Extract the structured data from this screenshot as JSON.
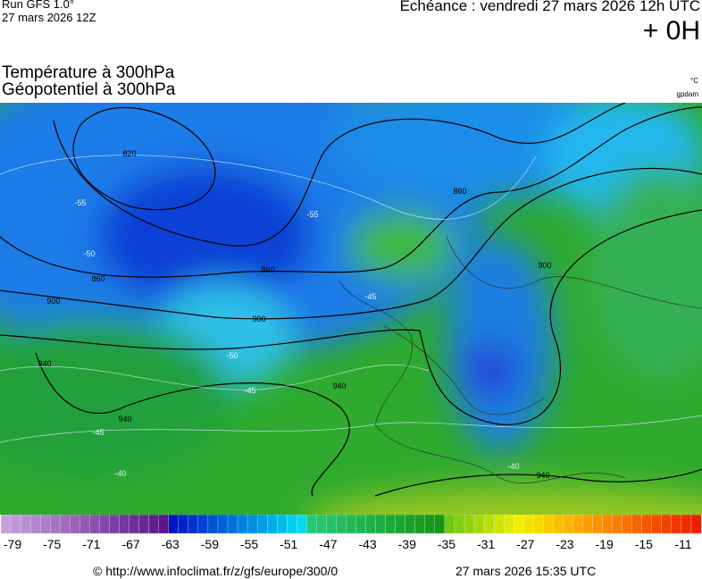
{
  "header": {
    "run": "Run GFS 1.0°",
    "run_date": "27 mars 2026 12Z",
    "echeance": "Echéance : vendredi 27 mars 2026 12h UTC",
    "offset": "+ 0H"
  },
  "titles": {
    "line1": "Température à 300hPa",
    "line2": "Géopotentiel à 300hPa",
    "unit1": "°C",
    "unit2": "gpdam"
  },
  "map": {
    "contour_labels": [
      "820",
      "860",
      "860",
      "860",
      "900",
      "900",
      "900",
      "940",
      "940",
      "940",
      "940",
      "-55",
      "-55",
      "-50",
      "-50",
      "-45",
      "-45",
      "-45",
      "-40",
      "-40"
    ]
  },
  "colorbar": {
    "labels": [
      "-79",
      "-75",
      "-71",
      "-67",
      "-63",
      "-59",
      "-55",
      "-51",
      "-47",
      "-43",
      "-39",
      "-35",
      "-31",
      "-27",
      "-23",
      "-19",
      "-15",
      "-11"
    ]
  },
  "footer": {
    "source": "© http://www.infoclimat.fr/z/gfs/europe/300/0",
    "generated": "27 mars 2026 15:35 UTC"
  }
}
